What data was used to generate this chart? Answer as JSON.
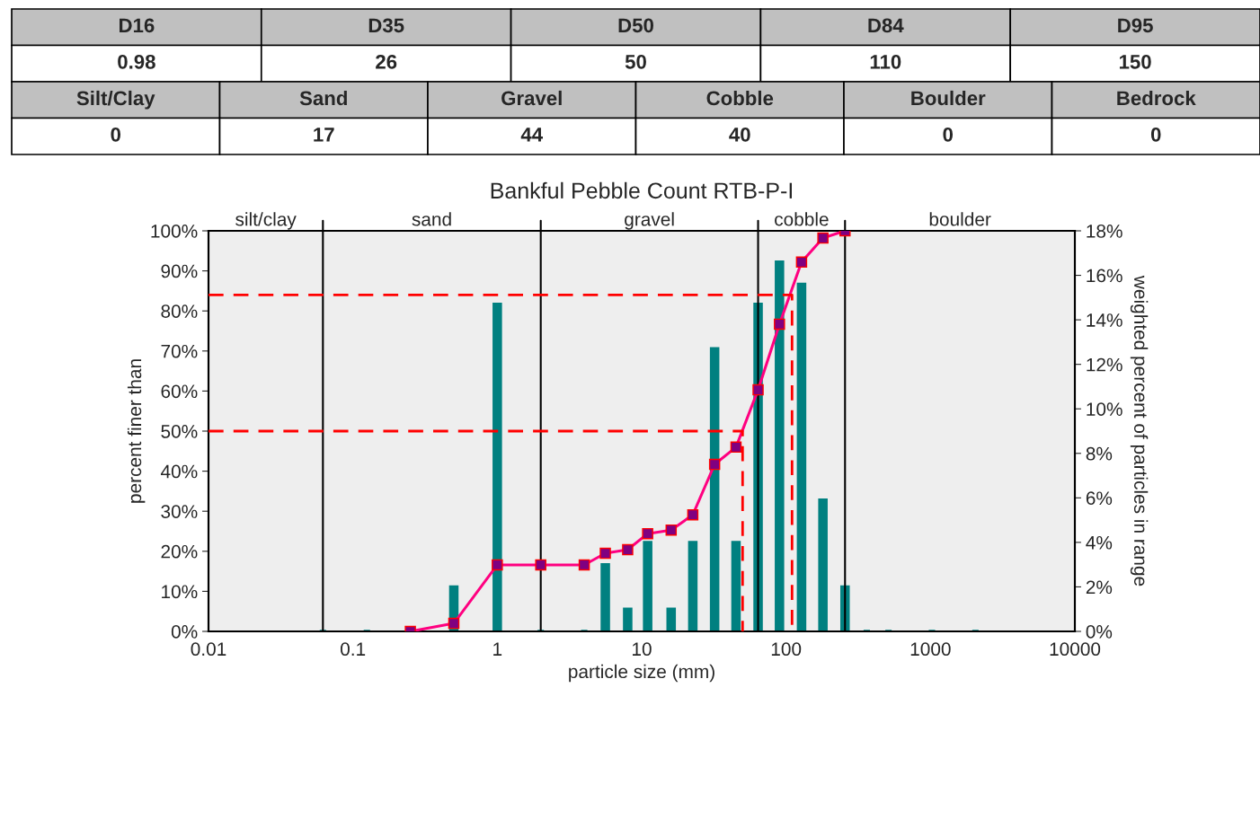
{
  "chart_data": {
    "type": "bar",
    "title": "Bankful Pebble Count RTB-P-I",
    "xlabel": "particle size (mm)",
    "ylabel": "percent finer than",
    "y2label": "weighted percent of particles in range",
    "log": "x",
    "grid": false,
    "legend": false,
    "xlim": [
      0.01,
      10000
    ],
    "xticks": [
      0.01,
      0.1,
      1,
      10,
      100,
      1000,
      10000
    ],
    "ylim": [
      0,
      100
    ],
    "yticks": [
      {
        "value": 0,
        "label": "0%"
      },
      {
        "value": 10,
        "label": "10%"
      },
      {
        "value": 20,
        "label": "20%"
      },
      {
        "value": 30,
        "label": "30%"
      },
      {
        "value": 40,
        "label": "40%"
      },
      {
        "value": 50,
        "label": "50%"
      },
      {
        "value": 60,
        "label": "60%"
      },
      {
        "value": 70,
        "label": "70%"
      },
      {
        "value": 80,
        "label": "80%"
      },
      {
        "value": 90,
        "label": "90%"
      },
      {
        "value": 100,
        "label": "100%"
      }
    ],
    "y2lim": [
      0,
      18
    ],
    "y2ticks": [
      {
        "value": 0,
        "label": "0%"
      },
      {
        "value": 2,
        "label": "2%"
      },
      {
        "value": 4,
        "label": "4%"
      },
      {
        "value": 6,
        "label": "6%"
      },
      {
        "value": 8,
        "label": "8%"
      },
      {
        "value": 10,
        "label": "10%"
      },
      {
        "value": 12,
        "label": "12%"
      },
      {
        "value": 14,
        "label": "14%"
      },
      {
        "value": 16,
        "label": "16%"
      },
      {
        "value": 18,
        "label": "18%"
      }
    ],
    "series": [
      {
        "axis": "y2",
        "color": "#008080",
        "x": [
          0.062,
          0.125,
          0.25,
          0.5,
          1,
          2,
          4,
          5.6,
          8,
          11,
          16,
          22.6,
          32,
          45,
          64,
          90,
          128,
          180,
          256,
          362,
          512,
          1024,
          2048
        ],
        "values": [
          0,
          0,
          0,
          2.0,
          14.7,
          0,
          0,
          3.0,
          1.0,
          4.0,
          1.0,
          4.0,
          12.7,
          4.0,
          14.7,
          16.6,
          15.6,
          5.9,
          2.0,
          0,
          0,
          0,
          0
        ]
      },
      {
        "type": "line",
        "color": "#ff0080",
        "marker": "square",
        "x": [
          0.25,
          0.5,
          1,
          2,
          4,
          5.6,
          8,
          11,
          16,
          22.6,
          32,
          45,
          64,
          90,
          128,
          180,
          256
        ],
        "values": [
          0,
          2.0,
          16.6,
          16.6,
          16.6,
          19.5,
          20.4,
          24.4,
          25.3,
          29.1,
          41.7,
          46.0,
          60.3,
          76.7,
          92.2,
          98.2,
          100
        ]
      },
      {
        "type": "line",
        "color": "#ff0000",
        "line_style": "dashed",
        "x": [
          0.01,
          110,
          110
        ],
        "values": [
          84,
          84,
          0
        ]
      },
      {
        "type": "line",
        "color": "#ff0000",
        "line_style": "dashed",
        "x": [
          0.01,
          50,
          50
        ],
        "values": [
          50,
          50,
          0
        ]
      }
    ],
    "ref_lines": [
      {
        "axis": "x",
        "value": 0.062,
        "color": "#000000"
      },
      {
        "axis": "x",
        "value": 2,
        "color": "#000000"
      },
      {
        "axis": "x",
        "value": 64,
        "color": "#000000"
      },
      {
        "axis": "x",
        "value": 256,
        "color": "#000000"
      }
    ],
    "annotations": [
      "D16",
      "D35",
      "D50",
      "D84",
      "D95",
      "0.98",
      "26",
      "50",
      "110",
      "150",
      "Silt/Clay",
      "Sand",
      "Gravel",
      "Cobble",
      "Boulder",
      "Bedrock",
      "0",
      "17",
      "44",
      "40",
      "0",
      "0",
      "silt/clay",
      "sand",
      "gravel",
      "cobble",
      "boulder"
    ]
  }
}
